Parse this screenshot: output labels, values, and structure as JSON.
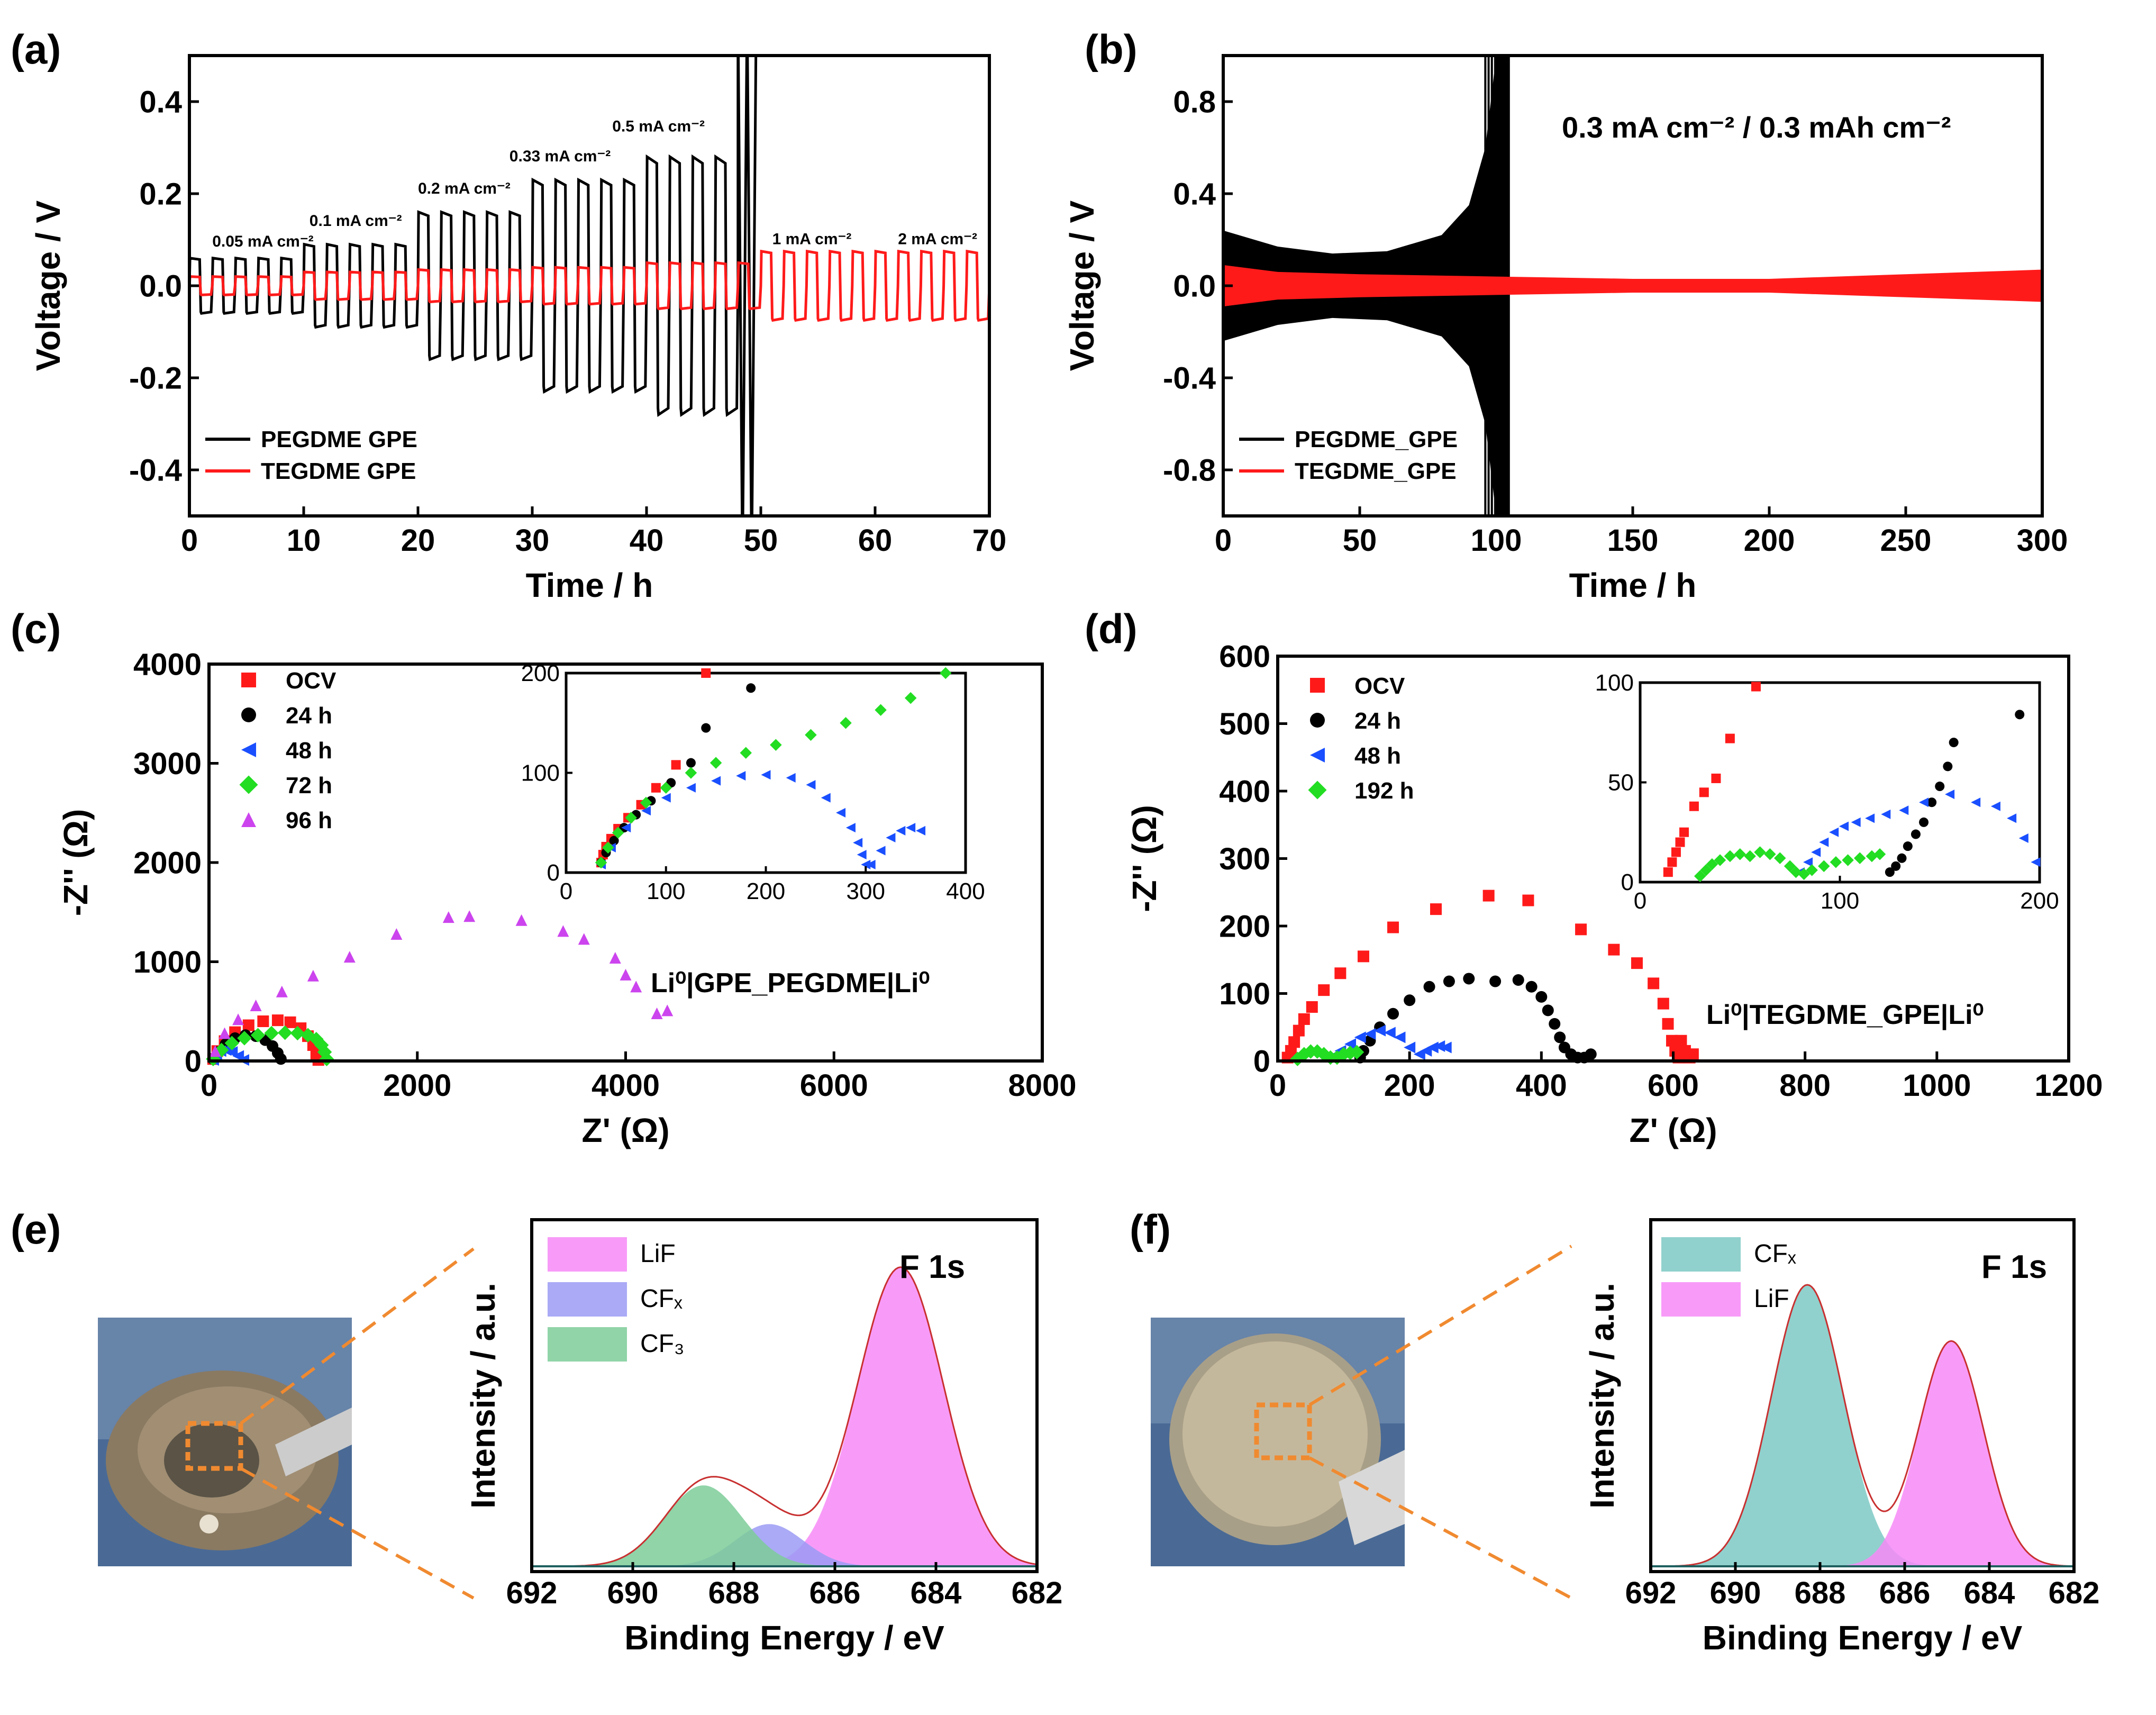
{
  "figure_labels": [
    "(a)",
    "(b)",
    "(c)",
    "(d)",
    "(e)",
    "(f)"
  ],
  "colors": {
    "pegdme": "#000000",
    "tegdme": "#ff1a1a",
    "blue": "#1a4fff",
    "green": "#22dd22",
    "purple": "#cc44ee",
    "lif": "#f78af7",
    "cfx": "#9b9bf5",
    "cf3": "#7ccc99",
    "cfx_f": "#7cc9c4",
    "orange": "#f08a30"
  },
  "chart_data": [
    {
      "id": "a",
      "type": "line",
      "xlabel": "Time / h",
      "ylabel": "Voltage / V",
      "xlim": [
        0,
        70
      ],
      "ylim": [
        -0.5,
        0.5
      ],
      "xticks": [
        0,
        10,
        20,
        30,
        40,
        50,
        60,
        70
      ],
      "yticks": [
        -0.4,
        -0.2,
        0.0,
        0.2,
        0.4
      ],
      "xtick_labels": [
        "0",
        "10",
        "20",
        "30",
        "40",
        "50",
        "60",
        "70"
      ],
      "ytick_labels": [
        "-0.4",
        "-0.2",
        "0.0",
        "0.2",
        "0.4"
      ],
      "legend": [
        "PEGDME GPE",
        "TEGDME GPE"
      ],
      "annotations": [
        "0.05 mA cm⁻²",
        "0.1 mA cm⁻²",
        "0.2 mA cm⁻²",
        "0.33 mA cm⁻²",
        "0.5 mA cm⁻²",
        "1 mA cm⁻²",
        "2 mA cm⁻²"
      ],
      "pegdme_steps": [
        {
          "t0": 0,
          "t1": 10,
          "amp": 0.06
        },
        {
          "t0": 10,
          "t1": 20,
          "amp": 0.09
        },
        {
          "t0": 20,
          "t1": 30,
          "amp": 0.16
        },
        {
          "t0": 30,
          "t1": 40,
          "amp": 0.23
        },
        {
          "t0": 40,
          "t1": 48,
          "amp": 0.28
        }
      ],
      "tegdme_steps": [
        {
          "t0": 0,
          "t1": 10,
          "amp": 0.02
        },
        {
          "t0": 10,
          "t1": 20,
          "amp": 0.03
        },
        {
          "t0": 20,
          "t1": 30,
          "amp": 0.035
        },
        {
          "t0": 30,
          "t1": 40,
          "amp": 0.04
        },
        {
          "t0": 40,
          "t1": 50,
          "amp": 0.05
        },
        {
          "t0": 50,
          "t1": 60,
          "amp": 0.075
        },
        {
          "t0": 60,
          "t1": 70,
          "amp": 0.075
        }
      ]
    },
    {
      "id": "b",
      "type": "line",
      "xlabel": "Time / h",
      "ylabel": "Voltage / V",
      "xlim": [
        0,
        300
      ],
      "ylim": [
        -1.0,
        1.0
      ],
      "xticks": [
        0,
        50,
        100,
        150,
        200,
        250,
        300
      ],
      "yticks": [
        -0.8,
        -0.4,
        0.0,
        0.4,
        0.8
      ],
      "xtick_labels": [
        "0",
        "50",
        "100",
        "150",
        "200",
        "250",
        "300"
      ],
      "ytick_labels": [
        "-0.8",
        "-0.4",
        "0.0",
        "0.4",
        "0.8"
      ],
      "legend": [
        "PEGDME_GPE",
        "TEGDME_GPE"
      ],
      "condition": "0.3 mA cm⁻² / 0.3 mAh cm⁻²",
      "pegdme_envelope": {
        "t": [
          0,
          20,
          40,
          60,
          80,
          90,
          96,
          100,
          105
        ],
        "v": [
          0.24,
          0.17,
          0.14,
          0.15,
          0.22,
          0.35,
          0.6,
          1.0,
          1.0
        ]
      },
      "tegdme_envelope": {
        "t": [
          0,
          20,
          50,
          100,
          150,
          200,
          250,
          300
        ],
        "v": [
          0.09,
          0.06,
          0.05,
          0.04,
          0.03,
          0.03,
          0.05,
          0.07
        ]
      }
    },
    {
      "id": "c",
      "type": "scatter",
      "xlabel": "Z' (Ω)",
      "ylabel": "-Z'' (Ω)",
      "xlim": [
        0,
        8000
      ],
      "ylim": [
        0,
        4000
      ],
      "xticks": [
        0,
        2000,
        4000,
        6000,
        8000
      ],
      "yticks": [
        0,
        1000,
        2000,
        3000,
        4000
      ],
      "xtick_labels": [
        "0",
        "2000",
        "4000",
        "6000",
        "8000"
      ],
      "ytick_labels": [
        "0",
        "1000",
        "2000",
        "3000",
        "4000"
      ],
      "cell": "Li⁰|GPE_PEGDME|Li⁰",
      "legend": [
        "OCV",
        "24 h",
        "48 h",
        "72 h",
        "96 h"
      ],
      "series": [
        {
          "name": "OCV",
          "marker": "square",
          "color": "#ff1a1a",
          "x": [
            40,
            80,
            150,
            250,
            380,
            520,
            660,
            780,
            880,
            950,
            1000,
            1030,
            1050
          ],
          "y": [
            20,
            100,
            200,
            290,
            360,
            400,
            410,
            390,
            330,
            250,
            160,
            70,
            10
          ]
        },
        {
          "name": "24 h",
          "marker": "circle",
          "color": "#000000",
          "x": [
            40,
            90,
            160,
            250,
            350,
            450,
            540,
            610,
            660,
            690
          ],
          "y": [
            20,
            90,
            170,
            230,
            260,
            250,
            210,
            150,
            80,
            20
          ]
        },
        {
          "name": "48 h",
          "marker": "triangle-left",
          "color": "#1a4fff",
          "x": [
            40,
            70,
            110,
            160,
            220,
            280,
            330
          ],
          "y": [
            10,
            60,
            100,
            110,
            90,
            50,
            10
          ]
        },
        {
          "name": "72 h",
          "marker": "diamond",
          "color": "#22dd22",
          "x": [
            40,
            120,
            220,
            340,
            470,
            600,
            730,
            850,
            950,
            1030,
            1080,
            1110,
            1130
          ],
          "y": [
            20,
            110,
            180,
            230,
            260,
            280,
            285,
            280,
            260,
            220,
            160,
            90,
            20
          ]
        },
        {
          "name": "96 h",
          "marker": "triangle-up",
          "color": "#cc44ee",
          "x": [
            60,
            150,
            280,
            450,
            700,
            1000,
            1350,
            1800,
            2300,
            2500,
            3000,
            3400,
            3600,
            3900,
            4000,
            4100,
            4300,
            4400
          ],
          "y": [
            100,
            280,
            420,
            560,
            700,
            860,
            1050,
            1280,
            1450,
            1460,
            1420,
            1310,
            1230,
            1040,
            870,
            750,
            480,
            510
          ]
        }
      ],
      "inset": {
        "xlim": [
          0,
          400
        ],
        "ylim": [
          0,
          200
        ],
        "xticks": [
          0,
          100,
          200,
          300,
          400
        ],
        "yticks": [
          0,
          100,
          200
        ],
        "xtick_labels": [
          "0",
          "100",
          "200",
          "300",
          "400"
        ],
        "ytick_labels": [
          "0",
          "100",
          "200"
        ],
        "series": [
          {
            "name": "OCV",
            "marker": "square",
            "color": "#ff1a1a",
            "x": [
              35,
              37,
              40,
              45,
              52,
              62,
              75,
              90,
              110,
              140
            ],
            "y": [
              10,
              18,
              26,
              34,
              44,
              55,
              68,
              85,
              108,
              200
            ]
          },
          {
            "name": "24 h",
            "marker": "circle",
            "color": "#000000",
            "x": [
              35,
              40,
              48,
              58,
              70,
              85,
              105,
              125,
              140,
              185
            ],
            "y": [
              10,
              20,
              32,
              45,
              58,
              72,
              90,
              110,
              145,
              185
            ]
          },
          {
            "name": "48 h",
            "marker": "triangle-left",
            "color": "#1a4fff",
            "x": [
              35,
              45,
              60,
              80,
              100,
              125,
              150,
              175,
              200,
              225,
              245,
              260,
              275,
              285,
              292,
              296,
              300,
              305,
              315,
              325,
              335,
              345,
              355
            ],
            "y": [
              8,
              25,
              45,
              62,
              75,
              85,
              92,
              97,
              98,
              95,
              88,
              75,
              60,
              45,
              30,
              18,
              8,
              8,
              22,
              35,
              42,
              45,
              42
            ]
          },
          {
            "name": "72 h",
            "marker": "diamond",
            "color": "#22dd22",
            "x": [
              35,
              42,
              52,
              65,
              80,
              100,
              125,
              150,
              180,
              210,
              245,
              280,
              315,
              345,
              380
            ],
            "y": [
              10,
              25,
              40,
              55,
              70,
              85,
              100,
              110,
              120,
              128,
              138,
              150,
              163,
              175,
              200
            ]
          }
        ]
      }
    },
    {
      "id": "d",
      "type": "scatter",
      "xlabel": "Z' (Ω)",
      "ylabel": "-Z'' (Ω)",
      "xlim": [
        0,
        1200
      ],
      "ylim": [
        0,
        600
      ],
      "xticks": [
        0,
        200,
        400,
        600,
        800,
        1000,
        1200
      ],
      "yticks": [
        0,
        100,
        200,
        300,
        400,
        500,
        600
      ],
      "xtick_labels": [
        "0",
        "200",
        "400",
        "600",
        "800",
        "1000",
        "1200"
      ],
      "ytick_labels": [
        "0",
        "100",
        "200",
        "300",
        "400",
        "500",
        "600"
      ],
      "cell": "Li⁰|TEGDME_GPE|Li⁰",
      "legend": [
        "OCV",
        "24 h",
        "48 h",
        "192 h"
      ],
      "series": [
        {
          "name": "OCV",
          "marker": "square",
          "color": "#ff1a1a",
          "x": [
            15,
            20,
            25,
            32,
            40,
            52,
            70,
            95,
            130,
            175,
            240,
            320,
            380,
            460,
            510,
            545,
            570,
            585,
            592,
            598,
            603,
            608,
            612,
            618,
            625,
            630
          ],
          "y": [
            5,
            15,
            28,
            45,
            62,
            80,
            105,
            130,
            155,
            198,
            225,
            245,
            238,
            195,
            165,
            145,
            115,
            85,
            55,
            30,
            15,
            5,
            30,
            15,
            5,
            10
          ]
        },
        {
          "name": "24 h",
          "marker": "circle",
          "color": "#000000",
          "x": [
            125,
            130,
            140,
            155,
            175,
            200,
            230,
            260,
            290,
            330,
            365,
            385,
            400,
            410,
            420,
            428,
            435,
            445,
            455,
            465,
            475
          ],
          "y": [
            5,
            15,
            30,
            50,
            70,
            90,
            110,
            118,
            122,
            118,
            120,
            110,
            95,
            75,
            55,
            35,
            20,
            10,
            5,
            5,
            10
          ]
        },
        {
          "name": "48 h",
          "marker": "triangle-left",
          "color": "#1a4fff",
          "x": [
            80,
            95,
            110,
            125,
            140,
            155,
            170,
            185,
            200,
            215,
            225,
            235,
            245,
            255
          ],
          "y": [
            5,
            15,
            25,
            35,
            40,
            45,
            42,
            35,
            20,
            10,
            15,
            20,
            22,
            20
          ]
        },
        {
          "name": "192 h",
          "marker": "diamond",
          "color": "#22dd22",
          "x": [
            30,
            40,
            50,
            60,
            70,
            80,
            90,
            100,
            110,
            120
          ],
          "y": [
            3,
            10,
            14,
            14,
            10,
            5,
            5,
            10,
            12,
            13
          ]
        }
      ],
      "inset": {
        "xlim": [
          0,
          200
        ],
        "ylim": [
          0,
          100
        ],
        "xticks": [
          0,
          100,
          200
        ],
        "yticks": [
          0,
          50,
          100
        ],
        "xtick_labels": [
          "0",
          "100",
          "200"
        ],
        "ytick_labels": [
          "0",
          "50",
          "100"
        ],
        "series": [
          {
            "name": "OCV",
            "marker": "square",
            "color": "#ff1a1a",
            "x": [
              14,
              16,
              18,
              20,
              22,
              27,
              32,
              38,
              45,
              58
            ],
            "y": [
              5,
              10,
              15,
              20,
              25,
              38,
              45,
              52,
              72,
              98
            ]
          },
          {
            "name": "24 h",
            "marker": "circle",
            "color": "#000000",
            "x": [
              125,
              128,
              131,
              134,
              138,
              142,
              146,
              150,
              154,
              157,
              190
            ],
            "y": [
              5,
              8,
              12,
              18,
              24,
              30,
              40,
              48,
              58,
              70,
              84
            ]
          },
          {
            "name": "48 h",
            "marker": "triangle-left",
            "color": "#1a4fff",
            "x": [
              80,
              84,
              88,
              92,
              97,
              102,
              108,
              115,
              123,
              132,
              142,
              155,
              168,
              178,
              186,
              192,
              198
            ],
            "y": [
              5,
              10,
              15,
              20,
              25,
              28,
              30,
              32,
              34,
              36,
              40,
              44,
              40,
              38,
              32,
              22,
              10
            ]
          },
          {
            "name": "192 h",
            "marker": "diamond",
            "color": "#22dd22",
            "x": [
              30,
              33,
              36,
              40,
              45,
              50,
              55,
              60,
              65,
              70,
              75,
              78,
              82,
              86,
              92,
              98,
              104,
              110,
              116,
              120
            ],
            "y": [
              3,
              6,
              9,
              11,
              13,
              14,
              13,
              15,
              14,
              12,
              8,
              5,
              4,
              6,
              8,
              10,
              11,
              12,
              13,
              14
            ]
          }
        ]
      }
    },
    {
      "id": "e",
      "type": "area",
      "title": "F 1s",
      "xlabel": "Binding Energy / eV",
      "ylabel": "Intensity / a.u.",
      "xlim": [
        692,
        682
      ],
      "ylim": [
        0,
        1.0
      ],
      "xticks": [
        692,
        690,
        688,
        686,
        684,
        682
      ],
      "xtick_labels": [
        "692",
        "690",
        "688",
        "686",
        "684",
        "682"
      ],
      "legend": [
        "LiF",
        "CFₓ",
        "CF₃"
      ],
      "peaks": [
        {
          "name": "LiF",
          "center": 684.7,
          "height": 0.85,
          "fwhm": 2.0,
          "color": "#f78af7"
        },
        {
          "name": "CFx",
          "center": 687.3,
          "height": 0.12,
          "fwhm": 1.6,
          "color": "#9b9bf5"
        },
        {
          "name": "CF3",
          "center": 688.6,
          "height": 0.23,
          "fwhm": 1.8,
          "color": "#7ccc99"
        }
      ]
    },
    {
      "id": "f",
      "type": "area",
      "title": "F 1s",
      "xlabel": "Binding Energy / eV",
      "ylabel": "Intensity / a.u.",
      "xlim": [
        692,
        682
      ],
      "ylim": [
        0,
        1.0
      ],
      "xticks": [
        692,
        690,
        688,
        686,
        684,
        682
      ],
      "xtick_labels": [
        "692",
        "690",
        "688",
        "686",
        "684",
        "682"
      ],
      "legend": [
        "CFₓ",
        "LiF"
      ],
      "peaks": [
        {
          "name": "CFx",
          "center": 688.3,
          "height": 0.8,
          "fwhm": 2.0,
          "color": "#7cc9c4"
        },
        {
          "name": "LiF",
          "center": 684.9,
          "height": 0.64,
          "fwhm": 1.8,
          "color": "#f78af7"
        }
      ]
    }
  ]
}
